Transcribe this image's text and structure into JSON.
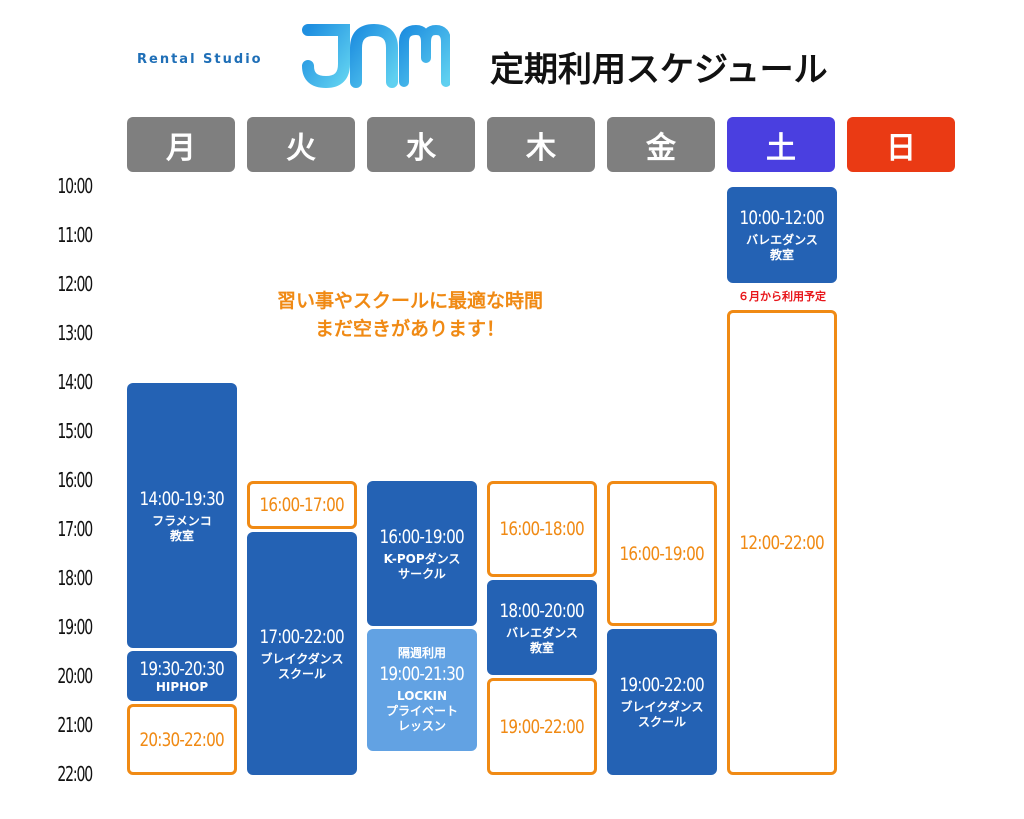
{
  "brand": {
    "prefix": "Rental Studio",
    "logo": "JAM"
  },
  "title": "定期利用スケジュール",
  "days": [
    {
      "label": "月",
      "color": "#7f7f7f"
    },
    {
      "label": "火",
      "color": "#7f7f7f"
    },
    {
      "label": "水",
      "color": "#7f7f7f"
    },
    {
      "label": "木",
      "color": "#7f7f7f"
    },
    {
      "label": "金",
      "color": "#7f7f7f"
    },
    {
      "label": "土",
      "color": "#4a3fe0"
    },
    {
      "label": "日",
      "color": "#ea3a14"
    }
  ],
  "times": [
    "10:00",
    "11:00",
    "12:00",
    "13:00",
    "14:00",
    "15:00",
    "16:00",
    "17:00",
    "18:00",
    "19:00",
    "20:00",
    "21:00",
    "22:00"
  ],
  "promo": {
    "line1": "習い事やスクールに最適な時間",
    "line2": "まだ空きがあります！"
  },
  "saturday_note": "６月から利用予定",
  "blocks": {
    "mon_1": {
      "time": "14:00-19:30",
      "name": "フラメンコ\n教室"
    },
    "mon_2": {
      "time": "19:30-20:30",
      "name": "HIPHOP"
    },
    "mon_3": {
      "time": "20:30-22:00"
    },
    "tue_1": {
      "time": "16:00-17:00"
    },
    "tue_2": {
      "time": "17:00-22:00",
      "name": "ブレイクダンス\nスクール"
    },
    "wed_1": {
      "time": "16:00-19:00",
      "name": "K-POPダンス\nサークル"
    },
    "wed_2": {
      "note": "隔週利用",
      "time": "19:00-21:30",
      "name": "LOCKIN\nプライベート\nレッスン"
    },
    "thu_1": {
      "time": "16:00-18:00"
    },
    "thu_2": {
      "time": "18:00-20:00",
      "name": "バレエダンス\n教室"
    },
    "thu_3": {
      "time": "19:00-22:00"
    },
    "fri_1": {
      "time": "16:00-19:00"
    },
    "fri_2": {
      "time": "19:00-22:00",
      "name": "ブレイクダンス\nスクール"
    },
    "sat_1": {
      "time": "10:00-12:00",
      "name": "バレエダンス\n教室"
    },
    "sat_2": {
      "time": "12:00-22:00"
    }
  },
  "colors": {
    "booked": "#2462b4",
    "light": "#62a2e3",
    "open": "#f08a14",
    "note_red": "#e8161b"
  }
}
